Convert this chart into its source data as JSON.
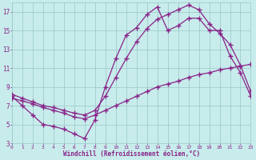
{
  "background_color": "#c8ecec",
  "grid_color": "#a0cccc",
  "line_color": "#882288",
  "xlabel": "Windchill (Refroidissement éolien,°C)",
  "xlim": [
    0,
    23
  ],
  "ylim": [
    3,
    18
  ],
  "yticks": [
    3,
    5,
    7,
    9,
    11,
    13,
    15,
    17
  ],
  "xticks": [
    0,
    1,
    2,
    3,
    4,
    5,
    6,
    7,
    8,
    9,
    10,
    11,
    12,
    13,
    14,
    15,
    16,
    17,
    18,
    19,
    20,
    21,
    22,
    23
  ],
  "line1_x": [
    0,
    1,
    2,
    3,
    4,
    5,
    6,
    7,
    8,
    9,
    10,
    11,
    12,
    13,
    14,
    15,
    16,
    17,
    18,
    19,
    20,
    21,
    22,
    23
  ],
  "line1_y": [
    8.0,
    7.0,
    6.0,
    5.0,
    4.8,
    4.5,
    4.0,
    3.5,
    5.5,
    9.0,
    12.0,
    14.5,
    15.3,
    16.7,
    17.5,
    15.0,
    15.5,
    16.3,
    16.3,
    15.0,
    15.0,
    12.3,
    10.5,
    8.0
  ],
  "line2_x": [
    0,
    1,
    2,
    3,
    4,
    5,
    6,
    7,
    8,
    9,
    10,
    11,
    12,
    13,
    14,
    15,
    16,
    17,
    18,
    19,
    20,
    21,
    22,
    23
  ],
  "line2_y": [
    7.8,
    7.5,
    7.2,
    6.8,
    6.5,
    6.2,
    5.8,
    5.6,
    6.0,
    6.5,
    7.0,
    7.5,
    8.0,
    8.5,
    9.0,
    9.3,
    9.6,
    10.0,
    10.3,
    10.5,
    10.8,
    11.0,
    11.2,
    11.4
  ],
  "line3_x": [
    0,
    1,
    2,
    3,
    4,
    5,
    6,
    7,
    8,
    9,
    10,
    11,
    12,
    13,
    14,
    15,
    16,
    17,
    18,
    19,
    20,
    21,
    22,
    23
  ],
  "line3_y": [
    8.2,
    7.8,
    7.4,
    7.0,
    6.8,
    6.5,
    6.2,
    6.0,
    6.5,
    8.0,
    10.0,
    12.0,
    13.8,
    15.2,
    16.2,
    16.7,
    17.2,
    17.7,
    17.2,
    15.7,
    14.7,
    13.5,
    11.3,
    8.5
  ]
}
